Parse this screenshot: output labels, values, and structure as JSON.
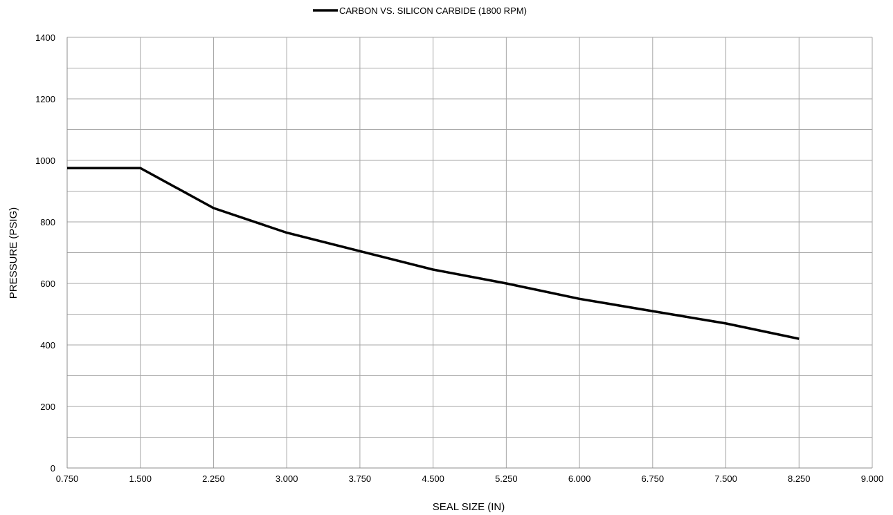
{
  "chart_data": {
    "type": "line",
    "title": "",
    "legend": {
      "position": "top-center",
      "entries": [
        "CARBON VS. SILICON CARBIDE (1800 RPM)"
      ]
    },
    "xlabel": "SEAL SIZE (IN)",
    "ylabel": "PRESSURE (PSIG)",
    "xlim": [
      0.75,
      9.0
    ],
    "ylim": [
      0,
      1400
    ],
    "x_ticks": [
      0.75,
      1.5,
      2.25,
      3.0,
      3.75,
      4.5,
      5.25,
      6.0,
      6.75,
      7.5,
      8.25,
      9.0
    ],
    "x_tick_labels": [
      "0.750",
      "1.500",
      "2.250",
      "3.000",
      "3.750",
      "4.500",
      "5.250",
      "6.000",
      "6.750",
      "7.500",
      "8.250",
      "9.000"
    ],
    "y_ticks": [
      0,
      200,
      400,
      600,
      800,
      1000,
      1200,
      1400
    ],
    "y_tick_labels": [
      "0",
      "200",
      "400",
      "600",
      "800",
      "1000",
      "1200",
      "1400"
    ],
    "y_minor_gridlines": [
      100,
      300,
      500,
      700,
      900,
      1100,
      1300
    ],
    "grid": true,
    "series": [
      {
        "name": "CARBON VS. SILICON CARBIDE (1800 RPM)",
        "color": "#000000",
        "x": [
          0.75,
          1.5,
          2.25,
          3.0,
          3.75,
          4.5,
          5.25,
          6.0,
          6.75,
          7.5,
          8.25
        ],
        "y": [
          975,
          975,
          845,
          765,
          705,
          645,
          600,
          550,
          510,
          470,
          420
        ]
      }
    ]
  }
}
